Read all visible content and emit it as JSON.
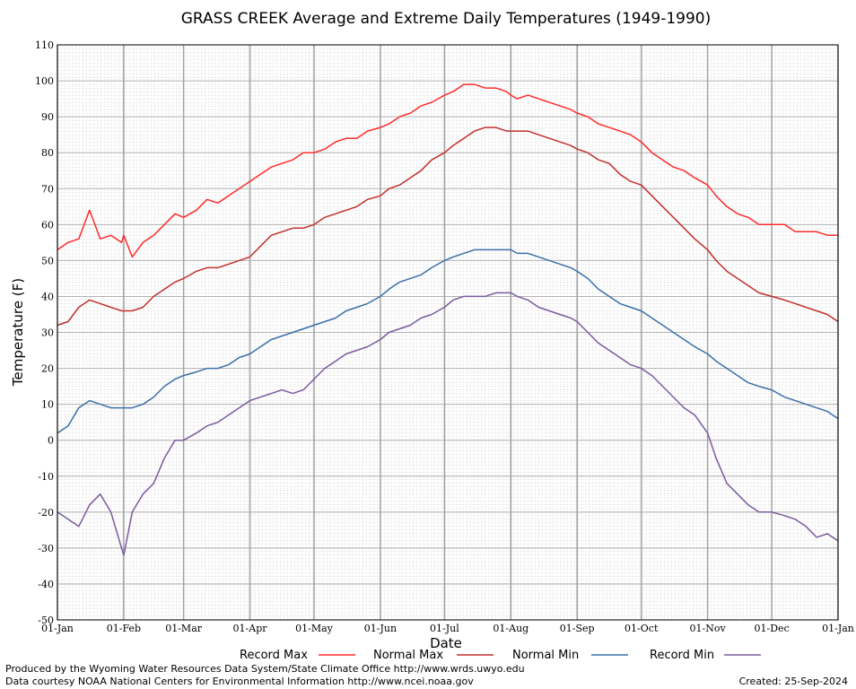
{
  "chart_data": {
    "type": "line",
    "title": "GRASS CREEK Average and Extreme Daily Temperatures (1949-1990)",
    "xlabel": "Date",
    "ylabel": "Temperature (F)",
    "ylim": [
      -50,
      110
    ],
    "yticks": [
      110,
      100,
      90,
      80,
      70,
      60,
      50,
      40,
      30,
      20,
      10,
      0,
      -10,
      -20,
      -30,
      -40,
      -50
    ],
    "x_ticks": [
      {
        "day": 0,
        "label": "01-Jan"
      },
      {
        "day": 31,
        "label": "01-Feb"
      },
      {
        "day": 59,
        "label": "01-Mar"
      },
      {
        "day": 90,
        "label": "01-Apr"
      },
      {
        "day": 120,
        "label": "01-May"
      },
      {
        "day": 151,
        "label": "01-Jun"
      },
      {
        "day": 181,
        "label": "01-Jul"
      },
      {
        "day": 212,
        "label": "01-Aug"
      },
      {
        "day": 243,
        "label": "01-Sep"
      },
      {
        "day": 273,
        "label": "01-Oct"
      },
      {
        "day": 304,
        "label": "01-Nov"
      },
      {
        "day": 334,
        "label": "01-Dec"
      },
      {
        "day": 365,
        "label": "01-Jan"
      }
    ],
    "grid": true,
    "legend_position": "bottom",
    "series": [
      {
        "name": "Record Max",
        "color": "#ff2a2a",
        "points": [
          [
            0,
            53
          ],
          [
            5,
            55
          ],
          [
            10,
            56
          ],
          [
            15,
            64
          ],
          [
            20,
            56
          ],
          [
            25,
            57
          ],
          [
            30,
            55
          ],
          [
            31,
            57
          ],
          [
            35,
            51
          ],
          [
            40,
            55
          ],
          [
            45,
            57
          ],
          [
            50,
            60
          ],
          [
            55,
            63
          ],
          [
            59,
            62
          ],
          [
            65,
            64
          ],
          [
            70,
            67
          ],
          [
            75,
            66
          ],
          [
            80,
            68
          ],
          [
            85,
            70
          ],
          [
            90,
            72
          ],
          [
            95,
            74
          ],
          [
            100,
            76
          ],
          [
            105,
            77
          ],
          [
            110,
            78
          ],
          [
            115,
            80
          ],
          [
            120,
            80
          ],
          [
            125,
            81
          ],
          [
            130,
            83
          ],
          [
            135,
            84
          ],
          [
            140,
            84
          ],
          [
            145,
            86
          ],
          [
            151,
            87
          ],
          [
            155,
            88
          ],
          [
            160,
            90
          ],
          [
            165,
            91
          ],
          [
            170,
            93
          ],
          [
            175,
            94
          ],
          [
            181,
            96
          ],
          [
            185,
            97
          ],
          [
            190,
            99
          ],
          [
            195,
            99
          ],
          [
            200,
            98
          ],
          [
            205,
            98
          ],
          [
            210,
            97
          ],
          [
            212,
            96
          ],
          [
            215,
            95
          ],
          [
            220,
            96
          ],
          [
            225,
            95
          ],
          [
            230,
            94
          ],
          [
            235,
            93
          ],
          [
            240,
            92
          ],
          [
            243,
            91
          ],
          [
            248,
            90
          ],
          [
            253,
            88
          ],
          [
            258,
            87
          ],
          [
            263,
            86
          ],
          [
            268,
            85
          ],
          [
            273,
            83
          ],
          [
            278,
            80
          ],
          [
            283,
            78
          ],
          [
            288,
            76
          ],
          [
            293,
            75
          ],
          [
            298,
            73
          ],
          [
            304,
            71
          ],
          [
            308,
            68
          ],
          [
            313,
            65
          ],
          [
            318,
            63
          ],
          [
            323,
            62
          ],
          [
            328,
            60
          ],
          [
            334,
            60
          ],
          [
            340,
            60
          ],
          [
            345,
            58
          ],
          [
            350,
            58
          ],
          [
            355,
            58
          ],
          [
            360,
            57
          ],
          [
            365,
            57
          ]
        ]
      },
      {
        "name": "Normal Max",
        "color": "#c0302c",
        "points": [
          [
            0,
            32
          ],
          [
            5,
            33
          ],
          [
            10,
            37
          ],
          [
            15,
            39
          ],
          [
            20,
            38
          ],
          [
            25,
            37
          ],
          [
            30,
            36
          ],
          [
            31,
            36
          ],
          [
            35,
            36
          ],
          [
            40,
            37
          ],
          [
            45,
            40
          ],
          [
            50,
            42
          ],
          [
            55,
            44
          ],
          [
            59,
            45
          ],
          [
            65,
            47
          ],
          [
            70,
            48
          ],
          [
            75,
            48
          ],
          [
            80,
            49
          ],
          [
            85,
            50
          ],
          [
            90,
            51
          ],
          [
            95,
            54
          ],
          [
            100,
            57
          ],
          [
            105,
            58
          ],
          [
            110,
            59
          ],
          [
            115,
            59
          ],
          [
            120,
            60
          ],
          [
            125,
            62
          ],
          [
            130,
            63
          ],
          [
            135,
            64
          ],
          [
            140,
            65
          ],
          [
            145,
            67
          ],
          [
            151,
            68
          ],
          [
            155,
            70
          ],
          [
            160,
            71
          ],
          [
            165,
            73
          ],
          [
            170,
            75
          ],
          [
            175,
            78
          ],
          [
            181,
            80
          ],
          [
            185,
            82
          ],
          [
            190,
            84
          ],
          [
            195,
            86
          ],
          [
            200,
            87
          ],
          [
            205,
            87
          ],
          [
            210,
            86
          ],
          [
            212,
            86
          ],
          [
            215,
            86
          ],
          [
            220,
            86
          ],
          [
            225,
            85
          ],
          [
            230,
            84
          ],
          [
            235,
            83
          ],
          [
            240,
            82
          ],
          [
            243,
            81
          ],
          [
            248,
            80
          ],
          [
            253,
            78
          ],
          [
            258,
            77
          ],
          [
            263,
            74
          ],
          [
            268,
            72
          ],
          [
            273,
            71
          ],
          [
            278,
            68
          ],
          [
            283,
            65
          ],
          [
            288,
            62
          ],
          [
            293,
            59
          ],
          [
            298,
            56
          ],
          [
            304,
            53
          ],
          [
            308,
            50
          ],
          [
            313,
            47
          ],
          [
            318,
            45
          ],
          [
            323,
            43
          ],
          [
            328,
            41
          ],
          [
            334,
            40
          ],
          [
            340,
            39
          ],
          [
            345,
            38
          ],
          [
            350,
            37
          ],
          [
            355,
            36
          ],
          [
            360,
            35
          ],
          [
            365,
            33
          ]
        ]
      },
      {
        "name": "Normal Min",
        "color": "#3a6fa8",
        "points": [
          [
            0,
            2
          ],
          [
            5,
            4
          ],
          [
            10,
            9
          ],
          [
            15,
            11
          ],
          [
            20,
            10
          ],
          [
            25,
            9
          ],
          [
            30,
            9
          ],
          [
            31,
            9
          ],
          [
            35,
            9
          ],
          [
            40,
            10
          ],
          [
            45,
            12
          ],
          [
            50,
            15
          ],
          [
            55,
            17
          ],
          [
            59,
            18
          ],
          [
            65,
            19
          ],
          [
            70,
            20
          ],
          [
            75,
            20
          ],
          [
            80,
            21
          ],
          [
            85,
            23
          ],
          [
            90,
            24
          ],
          [
            95,
            26
          ],
          [
            100,
            28
          ],
          [
            105,
            29
          ],
          [
            110,
            30
          ],
          [
            115,
            31
          ],
          [
            120,
            32
          ],
          [
            125,
            33
          ],
          [
            130,
            34
          ],
          [
            135,
            36
          ],
          [
            140,
            37
          ],
          [
            145,
            38
          ],
          [
            151,
            40
          ],
          [
            155,
            42
          ],
          [
            160,
            44
          ],
          [
            165,
            45
          ],
          [
            170,
            46
          ],
          [
            175,
            48
          ],
          [
            181,
            50
          ],
          [
            185,
            51
          ],
          [
            190,
            52
          ],
          [
            195,
            53
          ],
          [
            200,
            53
          ],
          [
            205,
            53
          ],
          [
            210,
            53
          ],
          [
            212,
            53
          ],
          [
            215,
            52
          ],
          [
            220,
            52
          ],
          [
            225,
            51
          ],
          [
            230,
            50
          ],
          [
            235,
            49
          ],
          [
            240,
            48
          ],
          [
            243,
            47
          ],
          [
            248,
            45
          ],
          [
            253,
            42
          ],
          [
            258,
            40
          ],
          [
            263,
            38
          ],
          [
            268,
            37
          ],
          [
            273,
            36
          ],
          [
            278,
            34
          ],
          [
            283,
            32
          ],
          [
            288,
            30
          ],
          [
            293,
            28
          ],
          [
            298,
            26
          ],
          [
            304,
            24
          ],
          [
            308,
            22
          ],
          [
            313,
            20
          ],
          [
            318,
            18
          ],
          [
            323,
            16
          ],
          [
            328,
            15
          ],
          [
            334,
            14
          ],
          [
            340,
            12
          ],
          [
            345,
            11
          ],
          [
            350,
            10
          ],
          [
            355,
            9
          ],
          [
            360,
            8
          ],
          [
            365,
            6
          ]
        ]
      },
      {
        "name": "Record Min",
        "color": "#7a5a9e",
        "points": [
          [
            0,
            -20
          ],
          [
            5,
            -22
          ],
          [
            10,
            -24
          ],
          [
            15,
            -18
          ],
          [
            20,
            -15
          ],
          [
            25,
            -20
          ],
          [
            30,
            -30
          ],
          [
            31,
            -32
          ],
          [
            35,
            -20
          ],
          [
            40,
            -15
          ],
          [
            45,
            -12
          ],
          [
            50,
            -5
          ],
          [
            55,
            0
          ],
          [
            59,
            0
          ],
          [
            65,
            2
          ],
          [
            70,
            4
          ],
          [
            75,
            5
          ],
          [
            80,
            7
          ],
          [
            85,
            9
          ],
          [
            90,
            11
          ],
          [
            95,
            12
          ],
          [
            100,
            13
          ],
          [
            105,
            14
          ],
          [
            110,
            13
          ],
          [
            115,
            14
          ],
          [
            120,
            17
          ],
          [
            125,
            20
          ],
          [
            130,
            22
          ],
          [
            135,
            24
          ],
          [
            140,
            25
          ],
          [
            145,
            26
          ],
          [
            151,
            28
          ],
          [
            155,
            30
          ],
          [
            160,
            31
          ],
          [
            165,
            32
          ],
          [
            170,
            34
          ],
          [
            175,
            35
          ],
          [
            181,
            37
          ],
          [
            185,
            39
          ],
          [
            190,
            40
          ],
          [
            195,
            40
          ],
          [
            200,
            40
          ],
          [
            205,
            41
          ],
          [
            210,
            41
          ],
          [
            212,
            41
          ],
          [
            215,
            40
          ],
          [
            220,
            39
          ],
          [
            225,
            37
          ],
          [
            230,
            36
          ],
          [
            235,
            35
          ],
          [
            240,
            34
          ],
          [
            243,
            33
          ],
          [
            248,
            30
          ],
          [
            253,
            27
          ],
          [
            258,
            25
          ],
          [
            263,
            23
          ],
          [
            268,
            21
          ],
          [
            273,
            20
          ],
          [
            278,
            18
          ],
          [
            283,
            15
          ],
          [
            288,
            12
          ],
          [
            293,
            9
          ],
          [
            298,
            7
          ],
          [
            304,
            2
          ],
          [
            308,
            -5
          ],
          [
            313,
            -12
          ],
          [
            318,
            -15
          ],
          [
            323,
            -18
          ],
          [
            328,
            -20
          ],
          [
            334,
            -20
          ],
          [
            340,
            -21
          ],
          [
            345,
            -22
          ],
          [
            350,
            -24
          ],
          [
            355,
            -27
          ],
          [
            360,
            -26
          ],
          [
            365,
            -28
          ]
        ]
      }
    ]
  },
  "legend": {
    "record_max": "Record Max",
    "normal_max": "Normal Max",
    "normal_min": "Normal Min",
    "record_min": "Record Min"
  },
  "footer": {
    "line1": "Produced by the Wyoming Water Resources Data System/State Climate Office http://www.wrds.uwyo.edu",
    "line2": "Data courtesy NOAA National Centers for Environmental Information http://www.ncei.noaa.gov",
    "created": "Created:  25-Sep-2024"
  }
}
